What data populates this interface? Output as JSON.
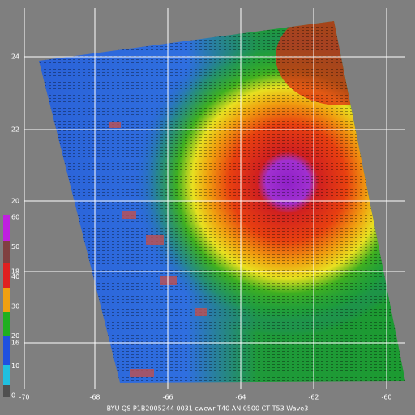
{
  "footer": "BYU QS P1B2005244 0031 cwcwr T40 AN 0500 CT T53 Wave3",
  "map": {
    "lat_labels": [
      "24",
      "22",
      "20",
      "18",
      "16"
    ],
    "lon_labels": [
      "-70",
      "-68",
      "-66",
      "-64",
      "-62",
      "-60"
    ],
    "colorbar_labels": [
      "60",
      "50",
      "40",
      "30",
      "20",
      "10",
      "0"
    ]
  }
}
